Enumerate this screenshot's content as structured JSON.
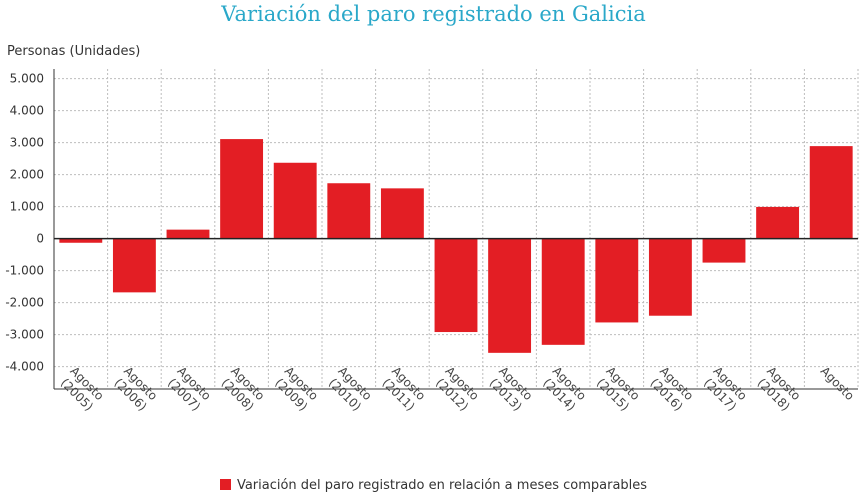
{
  "chart_data": {
    "type": "bar",
    "title": "Variación del paro registrado en Galicia",
    "ylabel": "Personas (Unidades)",
    "xlabel": "",
    "ylim": [
      -4700,
      5300
    ],
    "yticks": [
      5000,
      4000,
      3000,
      2000,
      1000,
      0,
      -1000,
      -2000,
      -3000,
      -4000
    ],
    "ytick_labels": [
      "5.000",
      "4.000",
      "3.000",
      "2.000",
      "1.000",
      "0",
      "-1.000",
      "-2.000",
      "-3.000",
      "-4.000"
    ],
    "categories": [
      [
        "Agosto",
        "(2005)"
      ],
      [
        "Agosto",
        "(2006)"
      ],
      [
        "Agosto",
        "(2007)"
      ],
      [
        "Agosto",
        "(2008)"
      ],
      [
        "Agosto",
        "(2009)"
      ],
      [
        "Agosto",
        "(2010)"
      ],
      [
        "Agosto",
        "(2011)"
      ],
      [
        "Agosto",
        "(2012)"
      ],
      [
        "Agosto",
        "(2013)"
      ],
      [
        "Agosto",
        "(2014)"
      ],
      [
        "Agosto",
        "(2015)"
      ],
      [
        "Agosto",
        "(2016)"
      ],
      [
        "Agosto",
        "(2017)"
      ],
      [
        "Agosto",
        "(2018)"
      ],
      [
        "Agosto"
      ]
    ],
    "series": [
      {
        "name": "Variación del paro registrado en relación a meses comparables",
        "color": "#e31e24",
        "values": [
          -130,
          -1680,
          280,
          3110,
          2370,
          1730,
          1570,
          -2920,
          -3570,
          -3320,
          -2620,
          -2410,
          -750,
          990,
          2890
        ]
      }
    ],
    "grid": true,
    "legend": "bottom-center"
  }
}
